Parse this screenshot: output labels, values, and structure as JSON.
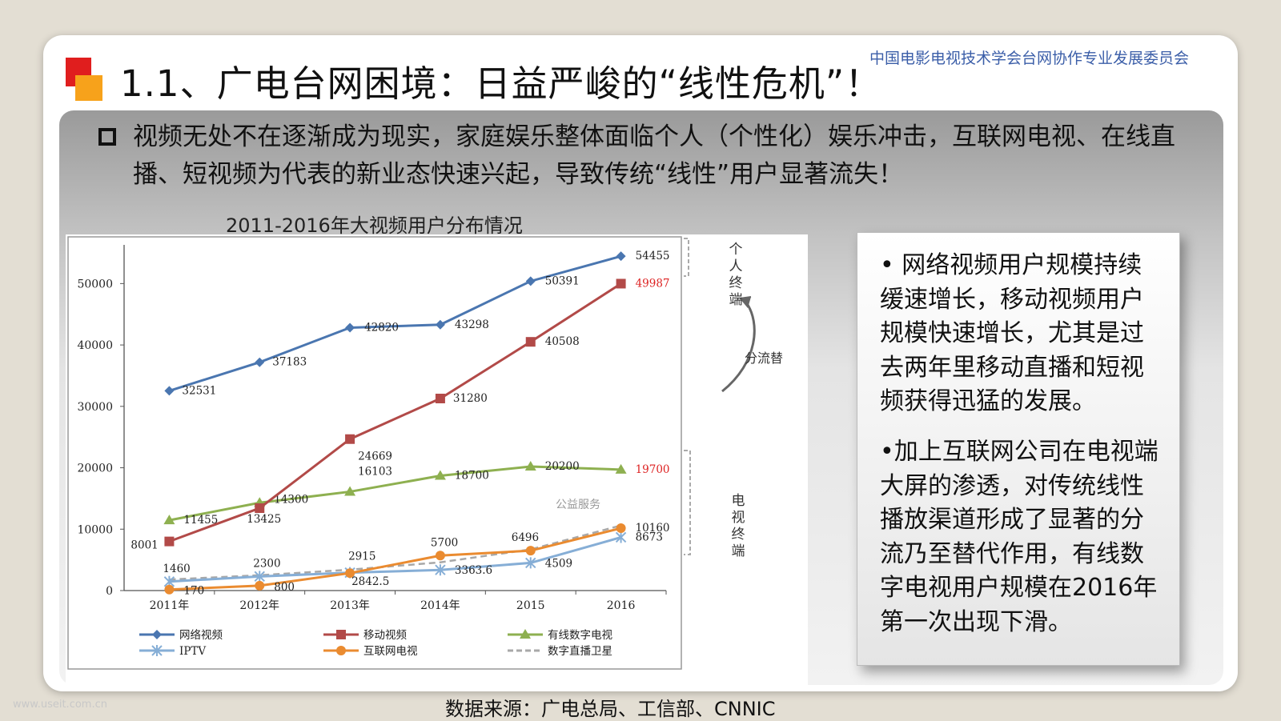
{
  "header": {
    "title": "1.1、广电台网困境：日益严峻的“线性危机”！",
    "org": "中国电影电视技术学会台网协作专业发展委员会"
  },
  "headline": "视频无处不在逐渐成为现实，家庭娱乐整体面临个人（个性化）娱乐冲击，互联网电视、在线直播、短视频为代表的新业态快速兴起，导致传统“线性”用户显著流失！",
  "side_labels": {
    "personal": "个人终端",
    "tv": "电视终端",
    "flow": "分流替"
  },
  "notes": [
    "• 网络视频用户规模持续缓速增长，移动视频用户规模快速增长，尤其是过去两年里移动直播和短视频获得迅猛的发展。",
    "•加上互联网公司在电视端大屏的渗透，对传统线性播放渠道形成了显著的分流乃至替代作用，有线数字电视用户规模在2016年第一次出现下滑。"
  ],
  "source": "数据来源：广电总局、工信部、CNNIC",
  "watermark": "www.useit.com.cn",
  "chart_data": {
    "type": "line",
    "title": "2011-2016年大视频用户分布情况",
    "categories": [
      "2011年",
      "2012年",
      "2013年",
      "2014年",
      "2015",
      "2016"
    ],
    "ylim": [
      0,
      55000
    ],
    "yticks": [
      0,
      10000,
      20000,
      30000,
      40000,
      50000
    ],
    "grid": false,
    "legend_position": "bottom",
    "annotation": "公益服务",
    "series": [
      {
        "name": "网络视频",
        "values": [
          32531,
          37183,
          42820,
          43298,
          50391,
          54455
        ],
        "color": "#4a76b0",
        "marker": "diamond",
        "labels": [
          "32531",
          "37183",
          "42820",
          "43298",
          "50391",
          "54455"
        ]
      },
      {
        "name": "移动视频",
        "values": [
          8001,
          13425,
          24669,
          31280,
          40508,
          49987
        ],
        "color": "#b24a48",
        "marker": "square",
        "labels": [
          "8001",
          "13425",
          "24669",
          "31280",
          "40508",
          "49987"
        ]
      },
      {
        "name": "有线数字电视",
        "values": [
          11455,
          14300,
          16103,
          18700,
          20200,
          19700
        ],
        "color": "#8eb050",
        "marker": "triangle",
        "labels": [
          "11455",
          "14300",
          "16103",
          "18700",
          "20200",
          "19700"
        ]
      },
      {
        "name": "IPTV",
        "values": [
          1460,
          2300,
          2915,
          3363.6,
          4509,
          8673
        ],
        "color": "#86aed6",
        "marker": "star",
        "labels": [
          "1460",
          "2300",
          "2915",
          "3363.6",
          "4509",
          "8673"
        ]
      },
      {
        "name": "互联网电视",
        "values": [
          170,
          800,
          2842.5,
          5700,
          6496,
          10160
        ],
        "color": "#ea8b30",
        "marker": "circle",
        "labels": [
          "170",
          "800",
          "2842.5",
          "5700",
          "6496",
          "10160"
        ]
      },
      {
        "name": "数字直播卫星",
        "values": [
          1800,
          2500,
          3400,
          4600,
          6700,
          10600
        ],
        "color": "#a8a8a8",
        "marker": "none",
        "dashed": true,
        "labels": []
      }
    ]
  }
}
